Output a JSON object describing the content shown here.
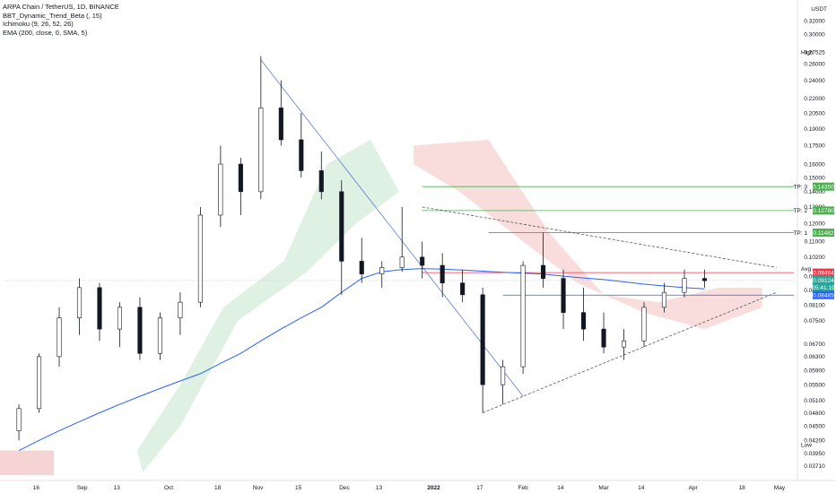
{
  "legend": {
    "symbol": "ARPA Chain / TetherUS, 1D, BINANCE",
    "ind1": "BBT_Dynamic_Trend_Beta (, 15)",
    "ind2": "Ichimoku (9, 26, 52, 26)",
    "ind3": "EMA (200, close, 0, SMA, 5)"
  },
  "axis": {
    "currency": "USDT",
    "y_ticks": [
      "0.34000",
      "0.32000",
      "0.30000",
      "0.27525",
      "0.26000",
      "0.24000",
      "0.22000",
      "0.20500",
      "0.19000",
      "0.17500",
      "0.16000",
      "0.15000",
      "0.14000",
      "0.13000",
      "0.12000",
      "0.11000",
      "0.10200",
      "0.09300",
      "0.08700",
      "0.08100",
      "0.07500",
      "0.06700",
      "0.06300",
      "0.05900",
      "0.05500",
      "0.05100",
      "0.04800",
      "0.04500",
      "0.04200",
      "0.03950",
      "0.03710",
      "0.03490"
    ],
    "x_ticks": [
      "16",
      "Sep",
      "13",
      "Oct",
      "18",
      "Nov",
      "15",
      "Dec",
      "13",
      "2022",
      "17",
      "Feb",
      "14",
      "Mar",
      "14",
      "Apr",
      "18",
      "May"
    ],
    "labels": {
      "high": "High",
      "avg": "Avg",
      "low": "Low",
      "high_val": "0.27525",
      "avg_val": "0.09646",
      "low_val": "0.04116"
    }
  },
  "tags": {
    "tp3": "TP: 3",
    "tp3_val": "0.14350",
    "tp2": "TP: 2",
    "tp2_val": "0.12780",
    "tp1": "TP: 1",
    "tp1_val": "0.11482",
    "entry_val": "0.09464",
    "last_val": "0.09124",
    "countdown": "05:41:19",
    "support_val": "0.08485"
  },
  "colors": {
    "up": "#ffffff",
    "down": "#131722",
    "ema": "#2962ff",
    "tp": "#4caf50",
    "entry": "#f23645",
    "support": "#2962ff",
    "cloud_bull": "#d7eedc",
    "cloud_bear": "#f7d4d4"
  },
  "chart_data": {
    "type": "candlestick",
    "x": [
      "2021-08-10",
      "2021-08-17",
      "2021-08-24",
      "2021-08-31",
      "2021-09-07",
      "2021-09-14",
      "2021-09-21",
      "2021-09-28",
      "2021-10-05",
      "2021-10-12",
      "2021-10-19",
      "2021-10-26",
      "2021-11-02",
      "2021-11-09",
      "2021-11-16",
      "2021-11-23",
      "2021-11-30",
      "2021-12-07",
      "2021-12-14",
      "2021-12-21",
      "2021-12-28",
      "2022-01-04",
      "2022-01-11",
      "2022-01-18",
      "2022-01-25",
      "2022-02-01",
      "2022-02-08",
      "2022-02-15",
      "2022-02-22",
      "2022-03-01",
      "2022-03-08",
      "2022-03-15",
      "2022-03-22",
      "2022-03-29",
      "2022-04-05"
    ],
    "candles": [
      [
        0.044,
        0.05,
        0.042,
        0.049
      ],
      [
        0.049,
        0.064,
        0.048,
        0.063
      ],
      [
        0.063,
        0.08,
        0.06,
        0.076
      ],
      [
        0.076,
        0.092,
        0.07,
        0.088
      ],
      [
        0.088,
        0.09,
        0.068,
        0.072
      ],
      [
        0.072,
        0.082,
        0.066,
        0.08
      ],
      [
        0.08,
        0.084,
        0.062,
        0.064
      ],
      [
        0.064,
        0.078,
        0.062,
        0.076
      ],
      [
        0.076,
        0.086,
        0.07,
        0.082
      ],
      [
        0.082,
        0.13,
        0.08,
        0.125
      ],
      [
        0.125,
        0.175,
        0.118,
        0.16
      ],
      [
        0.16,
        0.165,
        0.125,
        0.14
      ],
      [
        0.14,
        0.27,
        0.135,
        0.21
      ],
      [
        0.21,
        0.24,
        0.175,
        0.18
      ],
      [
        0.18,
        0.205,
        0.15,
        0.155
      ],
      [
        0.155,
        0.17,
        0.135,
        0.14
      ],
      [
        0.14,
        0.148,
        0.085,
        0.1
      ],
      [
        0.1,
        0.112,
        0.09,
        0.094
      ],
      [
        0.094,
        0.1,
        0.088,
        0.097
      ],
      [
        0.097,
        0.13,
        0.095,
        0.102
      ],
      [
        0.102,
        0.11,
        0.092,
        0.098
      ],
      [
        0.098,
        0.104,
        0.084,
        0.09
      ],
      [
        0.09,
        0.096,
        0.082,
        0.085
      ],
      [
        0.085,
        0.088,
        0.048,
        0.055
      ],
      [
        0.055,
        0.062,
        0.05,
        0.06
      ],
      [
        0.06,
        0.1,
        0.058,
        0.098
      ],
      [
        0.098,
        0.115,
        0.088,
        0.092
      ],
      [
        0.092,
        0.096,
        0.072,
        0.078
      ],
      [
        0.078,
        0.088,
        0.068,
        0.072
      ],
      [
        0.072,
        0.078,
        0.064,
        0.066
      ],
      [
        0.066,
        0.072,
        0.062,
        0.068
      ],
      [
        0.068,
        0.082,
        0.066,
        0.08
      ],
      [
        0.08,
        0.09,
        0.078,
        0.086
      ],
      [
        0.086,
        0.096,
        0.084,
        0.092
      ],
      [
        0.092,
        0.096,
        0.088,
        0.091
      ]
    ],
    "ema200": [
      0.04,
      0.042,
      0.044,
      0.046,
      0.048,
      0.05,
      0.052,
      0.054,
      0.056,
      0.058,
      0.061,
      0.064,
      0.068,
      0.072,
      0.076,
      0.08,
      0.086,
      0.092,
      0.095,
      0.096,
      0.0965,
      0.0962,
      0.0958,
      0.0953,
      0.0948,
      0.0944,
      0.094,
      0.093,
      0.0922,
      0.0915,
      0.0905,
      0.0895,
      0.0887,
      0.088,
      0.0875
    ],
    "horizontal_levels": {
      "tp3": 0.1435,
      "tp2": 0.1278,
      "tp1": 0.11482,
      "entry": 0.09464,
      "last": 0.09124,
      "support": 0.08485
    },
    "trendlines": [
      {
        "from": [
          "2021-11-02",
          0.265
        ],
        "to": [
          "2022-02-01",
          0.052
        ],
        "style": "solid"
      },
      {
        "from": [
          "2021-12-28",
          0.13
        ],
        "to": [
          "2022-04-30",
          0.097
        ],
        "style": "dashed"
      },
      {
        "from": [
          "2022-01-18",
          0.048
        ],
        "to": [
          "2022-04-30",
          0.086
        ],
        "style": "dashed"
      }
    ],
    "ylim": [
      0.0349,
      0.345
    ],
    "yscale": "log"
  }
}
